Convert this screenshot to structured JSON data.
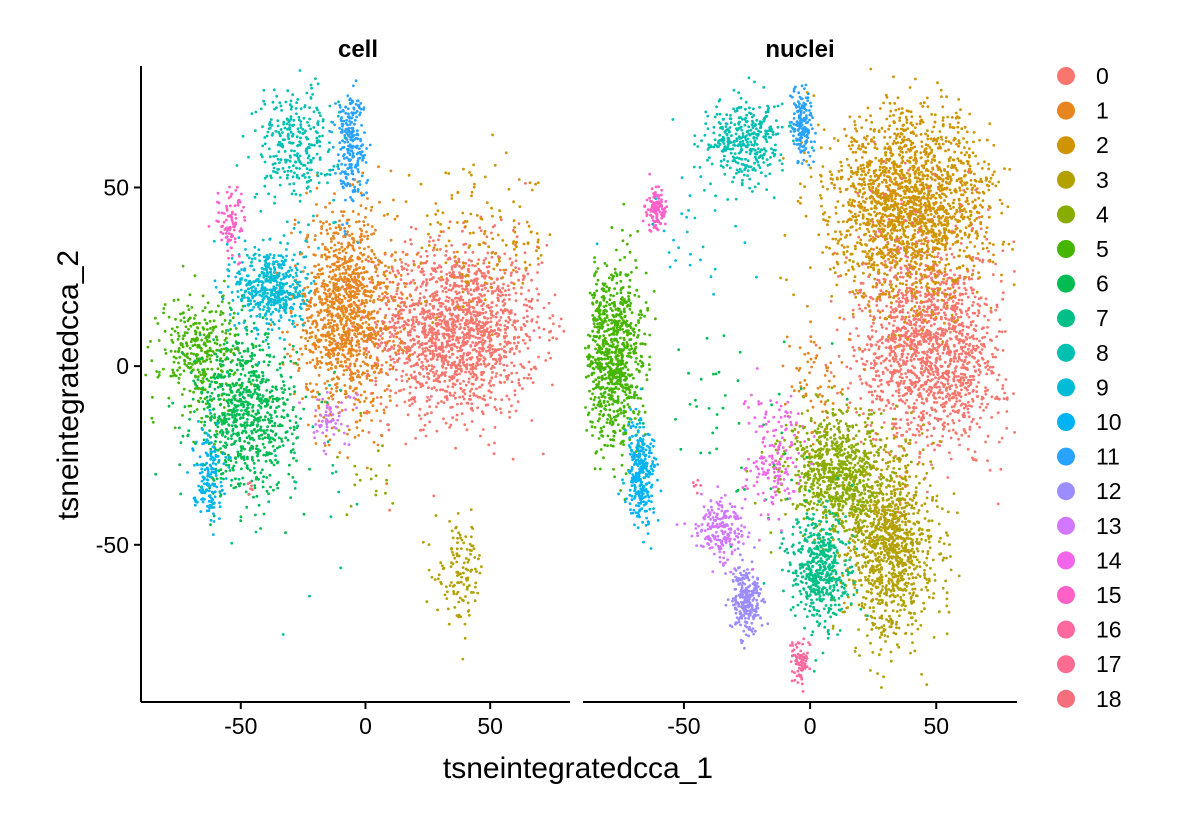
{
  "chart_data": {
    "type": "scatter",
    "xlabel": "tsneintegratedcca_1",
    "ylabel": "tsneintegratedcca_2",
    "xlim": [
      -90,
      82
    ],
    "ylim": [
      -94,
      84
    ],
    "x_ticks": [
      -50,
      0,
      50
    ],
    "y_ticks": [
      -50,
      0,
      50
    ],
    "grid": false,
    "legend_position": "right",
    "legend": {
      "labels": [
        "0",
        "1",
        "2",
        "3",
        "4",
        "5",
        "6",
        "7",
        "8",
        "9",
        "10",
        "11",
        "12",
        "13",
        "14",
        "15",
        "16",
        "17",
        "18"
      ],
      "colors": [
        "#F8766D",
        "#E7851E",
        "#D09400",
        "#B2A100",
        "#89AC00",
        "#45B500",
        "#00BC51",
        "#00C087",
        "#00C0B2",
        "#00BCD6",
        "#00B3F2",
        "#29A3FF",
        "#9C8DFF",
        "#D277FF",
        "#F166E8",
        "#FF61C7",
        "#FF689E",
        "#FF6C91",
        "#F46F7B"
      ]
    },
    "panels": [
      {
        "title": "cell",
        "clusters": [
          {
            "cluster": 0,
            "cx": 36,
            "cy": 10,
            "sx": 17,
            "sy": 12,
            "n": 1700
          },
          {
            "cluster": 1,
            "cx": -8,
            "cy": 15,
            "sx": 10,
            "sy": 14,
            "n": 1200
          },
          {
            "cluster": 2,
            "cx": 45,
            "cy": 35,
            "sx": 16,
            "sy": 10,
            "n": 150
          },
          {
            "cluster": 3,
            "cx": 38,
            "cy": -58,
            "sx": 5,
            "sy": 7,
            "n": 130
          },
          {
            "cluster": 4,
            "cx": 0,
            "cy": -30,
            "sx": 8,
            "sy": 6,
            "n": 20
          },
          {
            "cluster": 5,
            "cx": -66,
            "cy": 4,
            "sx": 8,
            "sy": 8,
            "n": 350
          },
          {
            "cluster": 6,
            "cx": -48,
            "cy": -14,
            "sx": 10,
            "sy": 11,
            "n": 800
          },
          {
            "cluster": 7,
            "cx": -20,
            "cy": -25,
            "sx": 15,
            "sy": 18,
            "n": 30
          },
          {
            "cluster": 8,
            "cx": -28,
            "cy": 62,
            "sx": 8,
            "sy": 8,
            "n": 300
          },
          {
            "cluster": 9,
            "cx": -38,
            "cy": 22,
            "sx": 7,
            "sy": 6,
            "n": 500
          },
          {
            "cluster": 10,
            "cx": -63,
            "cy": -30,
            "sx": 3,
            "sy": 6,
            "n": 150
          },
          {
            "cluster": 11,
            "cx": -6,
            "cy": 62,
            "sx": 3,
            "sy": 8,
            "n": 250
          },
          {
            "cluster": 13,
            "cx": -14,
            "cy": -15,
            "sx": 5,
            "sy": 4,
            "n": 60
          },
          {
            "cluster": 15,
            "cx": -54,
            "cy": 40,
            "sx": 3,
            "sy": 5,
            "n": 90
          },
          {
            "cluster": 18,
            "cx": -46,
            "cy": -34,
            "sx": 1,
            "sy": 1,
            "n": 6
          }
        ]
      },
      {
        "title": "nuclei",
        "clusters": [
          {
            "cluster": 0,
            "cx": 48,
            "cy": 5,
            "sx": 14,
            "sy": 14,
            "n": 1600
          },
          {
            "cluster": 1,
            "cx": 4,
            "cy": -5,
            "sx": 8,
            "sy": 10,
            "n": 80
          },
          {
            "cluster": 2,
            "cx": 40,
            "cy": 45,
            "sx": 16,
            "sy": 13,
            "n": 1900
          },
          {
            "cluster": 3,
            "cx": 32,
            "cy": -50,
            "sx": 9,
            "sy": 13,
            "n": 1100
          },
          {
            "cluster": 4,
            "cx": 10,
            "cy": -30,
            "sx": 10,
            "sy": 8,
            "n": 800
          },
          {
            "cluster": 5,
            "cx": -78,
            "cy": 3,
            "sx": 6,
            "sy": 13,
            "n": 900
          },
          {
            "cluster": 6,
            "cx": -30,
            "cy": -20,
            "sx": 18,
            "sy": 16,
            "n": 50
          },
          {
            "cluster": 7,
            "cx": 4,
            "cy": -58,
            "sx": 6,
            "sy": 8,
            "n": 500
          },
          {
            "cluster": 8,
            "cx": -26,
            "cy": 63,
            "sx": 8,
            "sy": 6,
            "n": 380
          },
          {
            "cluster": 9,
            "cx": -50,
            "cy": 40,
            "sx": 12,
            "sy": 10,
            "n": 30
          },
          {
            "cluster": 10,
            "cx": -67,
            "cy": -30,
            "sx": 3,
            "sy": 7,
            "n": 300
          },
          {
            "cluster": 11,
            "cx": -3,
            "cy": 67,
            "sx": 2,
            "sy": 5,
            "n": 170
          },
          {
            "cluster": 12,
            "cx": -25,
            "cy": -65,
            "sx": 3,
            "sy": 5,
            "n": 250
          },
          {
            "cluster": 13,
            "cx": -35,
            "cy": -46,
            "sx": 5,
            "sy": 4,
            "n": 200
          },
          {
            "cluster": 14,
            "cx": -15,
            "cy": -25,
            "sx": 6,
            "sy": 8,
            "n": 160
          },
          {
            "cluster": 15,
            "cx": -61,
            "cy": 44,
            "sx": 2,
            "sy": 3,
            "n": 120
          },
          {
            "cluster": 16,
            "cx": -4,
            "cy": -83,
            "sx": 1.5,
            "sy": 3,
            "n": 80
          },
          {
            "cluster": 17,
            "cx": -45,
            "cy": -33,
            "sx": 1,
            "sy": 1,
            "n": 6
          },
          {
            "cluster": 18,
            "cx": 38,
            "cy": 40,
            "sx": 10,
            "sy": 10,
            "n": 40
          }
        ]
      }
    ]
  }
}
